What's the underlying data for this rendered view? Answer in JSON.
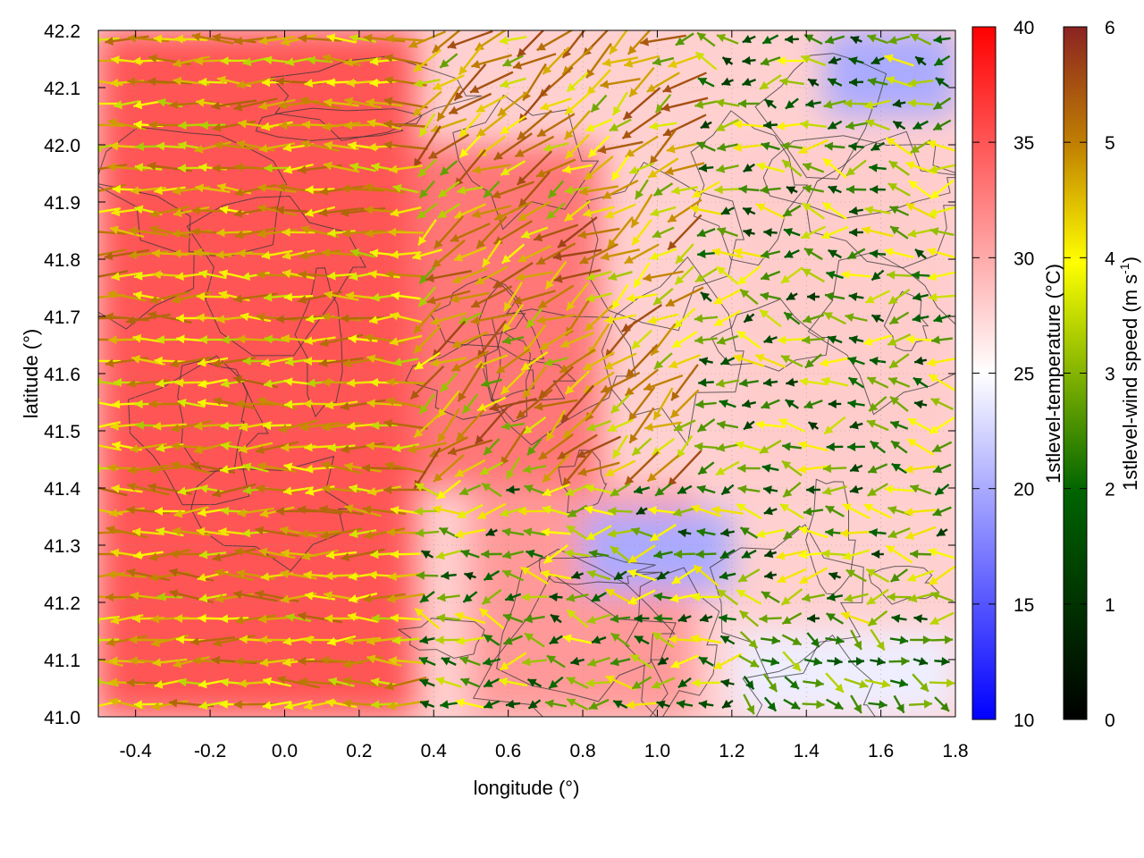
{
  "chart_data": {
    "type": "heatmap",
    "title": "",
    "xlabel": "longitude (°)",
    "ylabel": "latitude (°)",
    "xlim": [
      -0.5,
      1.8
    ],
    "ylim": [
      41.0,
      42.2
    ],
    "x_ticks": [
      -0.4,
      -0.2,
      0.0,
      0.2,
      0.4,
      0.6,
      0.8,
      1.0,
      1.2,
      1.4,
      1.6,
      1.8
    ],
    "x_tick_labels": [
      "-0.4",
      "-0.2",
      "0.0",
      "0.2",
      "0.4",
      "0.6",
      "0.8",
      "1.0",
      "1.2",
      "1.4",
      "1.6",
      "1.8"
    ],
    "y_ticks": [
      41.0,
      41.1,
      41.2,
      41.3,
      41.4,
      41.5,
      41.6,
      41.7,
      41.8,
      41.9,
      42.0,
      42.1,
      42.2
    ],
    "y_tick_labels": [
      "41.0",
      "41.1",
      "41.2",
      "41.3",
      "41.4",
      "41.5",
      "41.6",
      "41.7",
      "41.8",
      "41.9",
      "42.0",
      "42.1",
      "42.2"
    ],
    "grid": true,
    "temperature_colorbar": {
      "label": "1stlevel-temperature (°C)",
      "range": [
        10,
        40
      ],
      "ticks": [
        10,
        15,
        20,
        25,
        30,
        35,
        40
      ],
      "tick_labels": [
        "10",
        "15",
        "20",
        "25",
        "30",
        "35",
        "40"
      ],
      "colors": [
        "#0000ff",
        "#ffffff",
        "#ff0000"
      ]
    },
    "wind_colorbar": {
      "label_main": "1stlevel-wind speed (m s",
      "label_exp": "-1",
      "label_close": ")",
      "range": [
        0,
        6
      ],
      "ticks": [
        0,
        1,
        2,
        3,
        4,
        5,
        6
      ],
      "tick_labels": [
        "0",
        "1",
        "2",
        "3",
        "4",
        "5",
        "6"
      ],
      "colors": [
        "#000000",
        "#006400",
        "#ffff00",
        "#c08000",
        "#8b2323"
      ]
    },
    "temperature_regions": [
      {
        "lon": [
          -0.5,
          0.35
        ],
        "lat": [
          41.0,
          42.2
        ],
        "temp": 35
      },
      {
        "lon": [
          0.35,
          0.85
        ],
        "lat": [
          41.4,
          42.0
        ],
        "temp": 33
      },
      {
        "lon": [
          0.5,
          1.1
        ],
        "lat": [
          41.0,
          41.4
        ],
        "temp": 31
      },
      {
        "lon": [
          1.2,
          1.8
        ],
        "lat": [
          41.4,
          42.0
        ],
        "temp": 28
      },
      {
        "lon": [
          0.8,
          1.2
        ],
        "lat": [
          41.22,
          41.36
        ],
        "temp": 20
      },
      {
        "lon": [
          1.2,
          1.8
        ],
        "lat": [
          41.0,
          41.15
        ],
        "temp": 24
      },
      {
        "lon": [
          1.45,
          1.8
        ],
        "lat": [
          42.05,
          42.2
        ],
        "temp": 20
      }
    ]
  }
}
